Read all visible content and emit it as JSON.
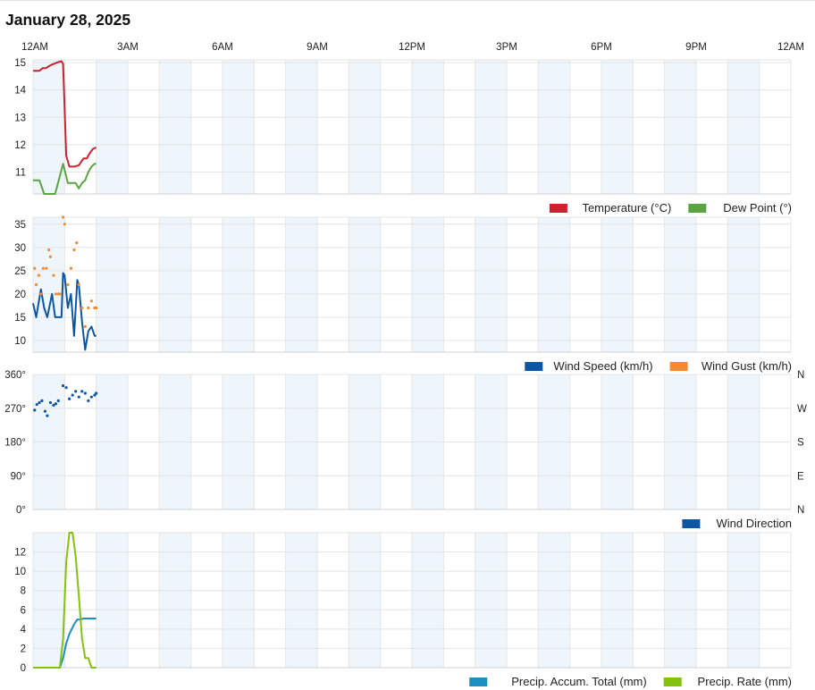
{
  "date_title": "January 28, 2025",
  "colors": {
    "temperature": "#d0202f",
    "dew_point": "#5aa542",
    "wind_speed": "#0d56a6",
    "wind_gust": "#f7892f",
    "wind_direction": "#0d56a6",
    "precip_accum": "#1b8fbf",
    "precip_rate": "#85c20d",
    "band": "#eef5fb",
    "grid": "#e4e4e4"
  },
  "chart_data": [
    {
      "type": "line",
      "x_ticks": [
        "12AM",
        "3AM",
        "6AM",
        "9AM",
        "12PM",
        "3PM",
        "6PM",
        "9PM",
        "12AM"
      ],
      "x_unit": "hours since 12AM",
      "xlim": [
        0,
        24
      ],
      "ylim": [
        10.2,
        15.1
      ],
      "y_ticks": [
        "11",
        "12",
        "13",
        "14",
        "15"
      ],
      "y_tick_values": [
        11,
        12,
        13,
        14,
        15
      ],
      "legend": [
        "Temperature (°C)",
        "Dew Point (°)"
      ],
      "series": [
        {
          "name": "Temperature (°C)",
          "style": "line",
          "x": [
            0,
            0.2,
            0.3,
            0.4,
            0.55,
            0.75,
            0.9,
            0.95,
            1.05,
            1.15,
            1.3,
            1.45,
            1.6,
            1.7,
            1.8,
            1.9,
            2.0
          ],
          "y": [
            14.7,
            14.7,
            14.8,
            14.8,
            14.9,
            15.0,
            15.05,
            14.95,
            11.6,
            11.2,
            11.2,
            11.25,
            11.5,
            11.5,
            11.7,
            11.85,
            11.9
          ]
        },
        {
          "name": "Dew Point (°)",
          "style": "line",
          "x": [
            0,
            0.2,
            0.35,
            0.7,
            0.95,
            1.1,
            1.2,
            1.35,
            1.45,
            1.55,
            1.65,
            1.75,
            1.85,
            1.95,
            2.0
          ],
          "y": [
            10.7,
            10.7,
            10.2,
            10.2,
            11.3,
            10.6,
            10.6,
            10.6,
            10.4,
            10.6,
            10.7,
            11.0,
            11.2,
            11.3,
            11.3
          ]
        }
      ]
    },
    {
      "type": "line",
      "x_ticks": [
        "12AM",
        "3AM",
        "6AM",
        "9AM",
        "12PM",
        "3PM",
        "6PM",
        "9PM",
        "12AM"
      ],
      "xlim": [
        0,
        24
      ],
      "ylim": [
        7.5,
        36.5
      ],
      "y_ticks": [
        "10",
        "15",
        "20",
        "25",
        "30",
        "35"
      ],
      "y_tick_values": [
        10,
        15,
        20,
        25,
        30,
        35
      ],
      "legend": [
        "Wind Speed (km/h)",
        "Wind Gust (km/h)"
      ],
      "series": [
        {
          "name": "Wind Speed (km/h)",
          "style": "line",
          "x": [
            0,
            0.1,
            0.25,
            0.35,
            0.45,
            0.6,
            0.7,
            0.8,
            0.9,
            0.95,
            1.0,
            1.1,
            1.2,
            1.3,
            1.4,
            1.45,
            1.55,
            1.65,
            1.75,
            1.85,
            1.95,
            2.0
          ],
          "y": [
            18,
            15,
            21,
            17,
            15,
            20,
            15,
            15,
            15,
            24.5,
            24,
            17,
            20,
            11,
            23,
            22,
            14,
            8,
            12,
            13,
            11,
            11
          ]
        },
        {
          "name": "Wind Gust (km/h)",
          "style": "dots",
          "x": [
            0.05,
            0.1,
            0.18,
            0.25,
            0.32,
            0.42,
            0.5,
            0.55,
            0.65,
            0.72,
            0.8,
            0.85,
            0.95,
            1.0,
            1.1,
            1.2,
            1.3,
            1.38,
            1.45,
            1.55,
            1.65,
            1.75,
            1.85,
            1.95,
            2.0
          ],
          "y": [
            25.5,
            22,
            24,
            20,
            25.5,
            25.5,
            29.5,
            28,
            24,
            20,
            20,
            20,
            36.5,
            35,
            22,
            25.5,
            29.5,
            31,
            22,
            17,
            13,
            17,
            18.5,
            17,
            17
          ]
        }
      ]
    },
    {
      "type": "scatter",
      "x_ticks": [
        "12AM",
        "3AM",
        "6AM",
        "9AM",
        "12PM",
        "3PM",
        "6PM",
        "9PM",
        "12AM"
      ],
      "xlim": [
        0,
        24
      ],
      "ylim": [
        0,
        360
      ],
      "y_ticks": [
        "0°",
        "90°",
        "180°",
        "270°",
        "360°"
      ],
      "y_tick_values": [
        0,
        90,
        180,
        270,
        360
      ],
      "right_ticks": [
        "N",
        "E",
        "S",
        "W",
        "N"
      ],
      "legend": [
        "Wind Direction"
      ],
      "series": [
        {
          "name": "Wind Direction",
          "style": "dots",
          "x": [
            0.05,
            0.12,
            0.2,
            0.28,
            0.38,
            0.45,
            0.55,
            0.65,
            0.72,
            0.8,
            0.95,
            1.05,
            1.15,
            1.25,
            1.35,
            1.45,
            1.55,
            1.65,
            1.75,
            1.85,
            1.95,
            2.0
          ],
          "y": [
            265,
            280,
            285,
            290,
            262,
            250,
            285,
            278,
            282,
            290,
            330,
            325,
            295,
            305,
            315,
            300,
            315,
            310,
            290,
            300,
            305,
            310
          ]
        }
      ]
    },
    {
      "type": "line",
      "x_ticks": [
        "12AM",
        "3AM",
        "6AM",
        "9AM",
        "12PM",
        "3PM",
        "6PM",
        "9PM",
        "12AM"
      ],
      "xlim": [
        0,
        24
      ],
      "ylim": [
        0,
        14
      ],
      "y_ticks": [
        "0",
        "2",
        "4",
        "6",
        "8",
        "10",
        "12"
      ],
      "y_tick_values": [
        0,
        2,
        4,
        6,
        8,
        10,
        12
      ],
      "legend": [
        "Precip. Accum. Total (mm)",
        "Precip. Rate (mm)"
      ],
      "series": [
        {
          "name": "Precip. Accum. Total (mm)",
          "style": "line",
          "x": [
            0,
            0.85,
            0.95,
            1.05,
            1.15,
            1.3,
            1.4,
            1.5,
            1.6,
            1.8,
            2.0
          ],
          "y": [
            0,
            0,
            1.0,
            2.5,
            3.5,
            4.5,
            5.0,
            5.0,
            5.1,
            5.1,
            5.1
          ]
        },
        {
          "name": "Precip. Rate (mm)",
          "style": "line",
          "x": [
            0,
            0.85,
            0.95,
            1.05,
            1.15,
            1.25,
            1.35,
            1.45,
            1.55,
            1.65,
            1.75,
            1.85,
            2.0
          ],
          "y": [
            0,
            0,
            3.0,
            11.0,
            14.0,
            14.0,
            11.5,
            7.5,
            3.0,
            1.0,
            1.0,
            0,
            0
          ]
        }
      ]
    }
  ]
}
